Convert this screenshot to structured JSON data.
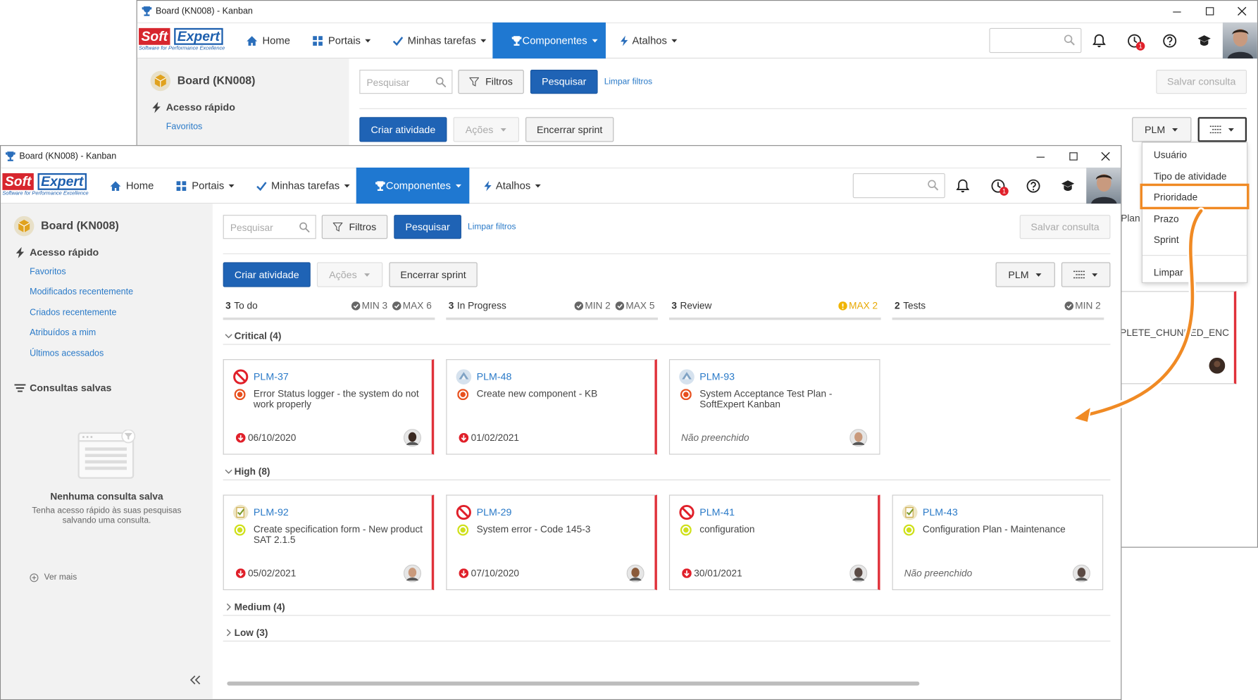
{
  "back_window": {
    "title": "Board (KN008) - Kanban",
    "logo": {
      "brand_a": "Soft",
      "brand_b": "Expert",
      "tagline": "Software for Performance Excellence"
    },
    "nav": [
      {
        "label": "Home",
        "caret": false
      },
      {
        "label": "Portais",
        "caret": true
      },
      {
        "label": "Minhas tarefas",
        "caret": true
      },
      {
        "label": "Componentes",
        "caret": true
      },
      {
        "label": "Atalhos",
        "caret": true
      }
    ],
    "active_nav": 3,
    "badge": 1,
    "sidebar": {
      "board_title": "Board (KN008)",
      "quick_access": "Acesso rápido",
      "links": [
        "Favoritos"
      ]
    },
    "toolbar": {
      "search_placeholder": "Pesquisar",
      "filters": "Filtros",
      "search": "Pesquisar",
      "clear_filters": "Limpar filtros",
      "save_query": "Salvar consulta",
      "create": "Criar atividade",
      "actions": "Ações",
      "end_sprint": "Encerrar sprint",
      "project": "PLM"
    },
    "view_menu_open": true,
    "menu": {
      "items": [
        "Usuário",
        "Tipo de atividade",
        "Prioridade",
        "Prazo",
        "Sprint"
      ],
      "clear": "Limpar",
      "highlighted": 2
    },
    "partial_texts": [
      "Plan",
      "PLETE_CHUNKED_ENC"
    ]
  },
  "front_window": {
    "title": "Board (KN008) - Kanban",
    "logo": {
      "brand_a": "Soft",
      "brand_b": "Expert",
      "tagline": "Software for Performance Excellence"
    },
    "nav": [
      {
        "label": "Home",
        "caret": false
      },
      {
        "label": "Portais",
        "caret": true
      },
      {
        "label": "Minhas tarefas",
        "caret": true
      },
      {
        "label": "Componentes",
        "caret": true
      },
      {
        "label": "Atalhos",
        "caret": true
      }
    ],
    "active_nav": 3,
    "badge": 1,
    "sidebar": {
      "board_title": "Board (KN008)",
      "quick_access": "Acesso rápido",
      "links": [
        "Favoritos",
        "Modificados recentemente",
        "Criados recentemente",
        "Atribuídos a mim",
        "Últimos acessados"
      ],
      "saved_queries": "Consultas salvas",
      "empty_title": "Nenhuma consulta salva",
      "empty_text": "Tenha acesso rápido às suas pesquisas salvando uma consulta.",
      "see_more": "Ver mais"
    },
    "toolbar": {
      "search_placeholder": "Pesquisar",
      "filters": "Filtros",
      "search": "Pesquisar",
      "clear_filters": "Limpar filtros",
      "save_query": "Salvar consulta",
      "create": "Criar atividade",
      "actions": "Ações",
      "end_sprint": "Encerrar sprint",
      "project": "PLM"
    },
    "view_menu_open": false,
    "columns": [
      {
        "count": 3,
        "name": "To do",
        "limits": [
          {
            "text": "MIN 3",
            "warning": false
          },
          {
            "text": "MAX 6",
            "warning": false
          }
        ]
      },
      {
        "count": 3,
        "name": "In Progress",
        "limits": [
          {
            "text": "MIN 2",
            "warning": false
          },
          {
            "text": "MAX 5",
            "warning": false
          }
        ]
      },
      {
        "count": 3,
        "name": "Review",
        "limits": [
          {
            "text": "MAX 2",
            "warning": true
          }
        ]
      },
      {
        "count": 2,
        "name": "Tests",
        "limits": [
          {
            "text": "MIN 2",
            "warning": false
          }
        ]
      }
    ],
    "groups": [
      {
        "label": "Critical (4)",
        "expanded": true,
        "dot_color": "#e8501e",
        "cards": [
          {
            "id": "PLM-37",
            "icon": "blocked",
            "title": "Error Status logger - the system do not work properly",
            "date": "06/10/2020",
            "date_set": true,
            "alert": true,
            "avatar": "#3b2a22"
          },
          {
            "id": "PLM-48",
            "icon": "kb",
            "title": "Create new component - KB",
            "date": "01/02/2021",
            "date_set": true,
            "alert": true,
            "avatar": null
          },
          {
            "id": "PLM-93",
            "icon": "kb",
            "title": "System Acceptance Test Plan - SoftExpert Kanban",
            "date": "Não preenchido",
            "date_set": false,
            "alert": false,
            "avatar": "#c99a7c"
          }
        ]
      },
      {
        "label": "High (8)",
        "expanded": true,
        "dot_color": "#cfe01a",
        "cards": [
          {
            "id": "PLM-92",
            "icon": "spec",
            "title": "Create specification form - New product SAT 2.1.5",
            "date": "05/02/2021",
            "date_set": true,
            "alert": true,
            "avatar": "#c99a7c"
          },
          {
            "id": "PLM-29",
            "icon": "blocked",
            "title": "System error - Code 145-3",
            "date": "07/10/2020",
            "date_set": true,
            "alert": true,
            "avatar": "#8a5a3a"
          },
          {
            "id": "PLM-41",
            "icon": "blocked",
            "title": "configuration",
            "date": "30/01/2021",
            "date_set": true,
            "alert": true,
            "avatar": "#5a4a44"
          },
          {
            "id": "PLM-43",
            "icon": "spec",
            "title": "Configuration Plan - Maintenance",
            "date": "Não preenchido",
            "date_set": false,
            "alert": false,
            "avatar": "#5a4a44"
          }
        ]
      },
      {
        "label": "Medium (4)",
        "expanded": false,
        "dot_color": "#e8a01e",
        "cards": []
      },
      {
        "label": "Low (3)",
        "expanded": false,
        "dot_color": "#3aa0e0",
        "cards": []
      }
    ]
  }
}
